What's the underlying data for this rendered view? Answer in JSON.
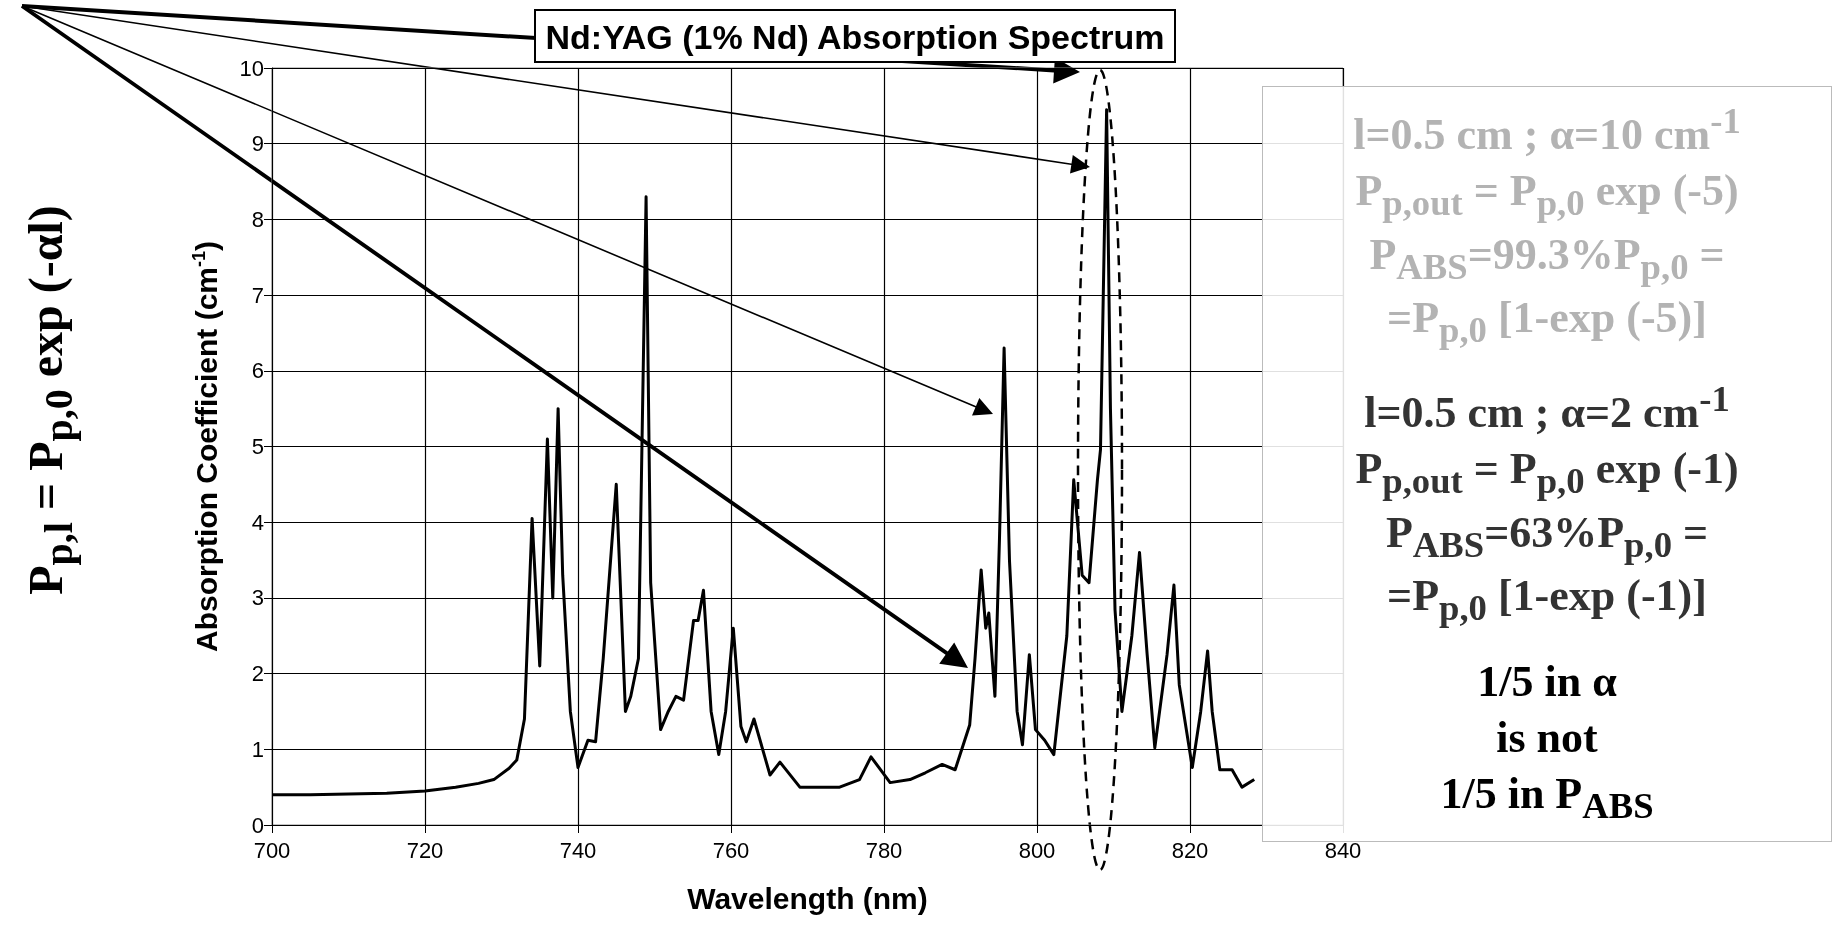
{
  "chart_data": {
    "type": "line",
    "title": "Nd:YAG (1% Nd) Absorption Spectrum",
    "xlabel": "Wavelength (nm)",
    "ylabel": "Absorption Coefficient (cm$^{-1}$)",
    "annotations": [
      "P$_{p,l}$ = P$_{p,0}$ exp (-αl)",
      "l=0.5 cm ; α=10 cm$^{-1}$\nP$_{p,out}$ = P$_{p,0}$ exp (-5)\nP$_{ABS}$=99.3%P$_{p,0}$ =\n=P$_{p,0}$ [1-exp (-5)]",
      "l=0.5 cm ; α=2 cm$^{-1}$\nP$_{p,out}$ = P$_{p,0}$ exp (-1)\nP$_{ABS}$=63%P$_{p,0}$ =\n=P$_{p,0}$ [1-exp (-1)]",
      "1/5 in α\nis not\n1/5 in P$_{ABS}$"
    ],
    "x": [
      700,
      705,
      710,
      715,
      720,
      724,
      727,
      729,
      731,
      732,
      733,
      734,
      735,
      736,
      736.7,
      737.4,
      738,
      739,
      740,
      741.3,
      742.3,
      743.3,
      745,
      746.2,
      746.9,
      747.9,
      748.9,
      749.5,
      750.8,
      751.8,
      752.8,
      753.8,
      755.1,
      755.7,
      756.4,
      757.4,
      758.4,
      759.3,
      760.3,
      761.3,
      762,
      763,
      765.1,
      766.4,
      769,
      774.2,
      776.8,
      778.3,
      780.8,
      783.4,
      785.4,
      787.6,
      789.3,
      791.2,
      791.9,
      792.7,
      793.3,
      793.7,
      794.5,
      795.1,
      795.7,
      796.4,
      797.4,
      798.1,
      799,
      799.8,
      801,
      802.2,
      803.9,
      804.8,
      805.9,
      806.8,
      807.9,
      808.3,
      809.1,
      809.6,
      810.2,
      811.1,
      812.4,
      813.4,
      814.4,
      815.4,
      817,
      817.9,
      818.6,
      820.3,
      821.4,
      822.3,
      822.9,
      823.9,
      825.5,
      826.8,
      828.4
    ],
    "values": [
      0.4,
      0.4,
      0.41,
      0.42,
      0.45,
      0.5,
      0.55,
      0.6,
      0.75,
      0.86,
      1.4,
      4.05,
      2.1,
      5.1,
      3.0,
      5.5,
      3.3,
      1.5,
      0.76,
      1.12,
      1.1,
      2.2,
      4.5,
      1.5,
      1.7,
      2.2,
      8.3,
      3.2,
      1.26,
      1.5,
      1.7,
      1.65,
      2.7,
      2.7,
      3.1,
      1.5,
      0.93,
      1.5,
      2.6,
      1.3,
      1.1,
      1.4,
      0.66,
      0.83,
      0.5,
      0.5,
      0.6,
      0.9,
      0.56,
      0.6,
      0.69,
      0.8,
      0.73,
      1.32,
      2.2,
      3.37,
      2.6,
      2.8,
      1.7,
      3.8,
      6.3,
      3.5,
      1.5,
      1.06,
      2.25,
      1.26,
      1.12,
      0.93,
      2.5,
      4.56,
      3.3,
      3.2,
      4.56,
      4.96,
      9.45,
      5.5,
      2.84,
      1.5,
      2.5,
      3.6,
      2.25,
      1.02,
      2.25,
      3.17,
      1.85,
      0.76,
      1.5,
      2.3,
      1.5,
      0.73,
      0.73,
      0.5,
      0.6
    ],
    "color": "#000000",
    "xlim": [
      700,
      840
    ],
    "ylim": [
      0,
      10
    ],
    "xticks": [
      700,
      720,
      740,
      760,
      780,
      800,
      820,
      840
    ],
    "yticks": [
      0,
      1,
      2,
      3,
      4,
      5,
      6,
      7,
      8,
      9,
      10
    ],
    "grid": true
  }
}
